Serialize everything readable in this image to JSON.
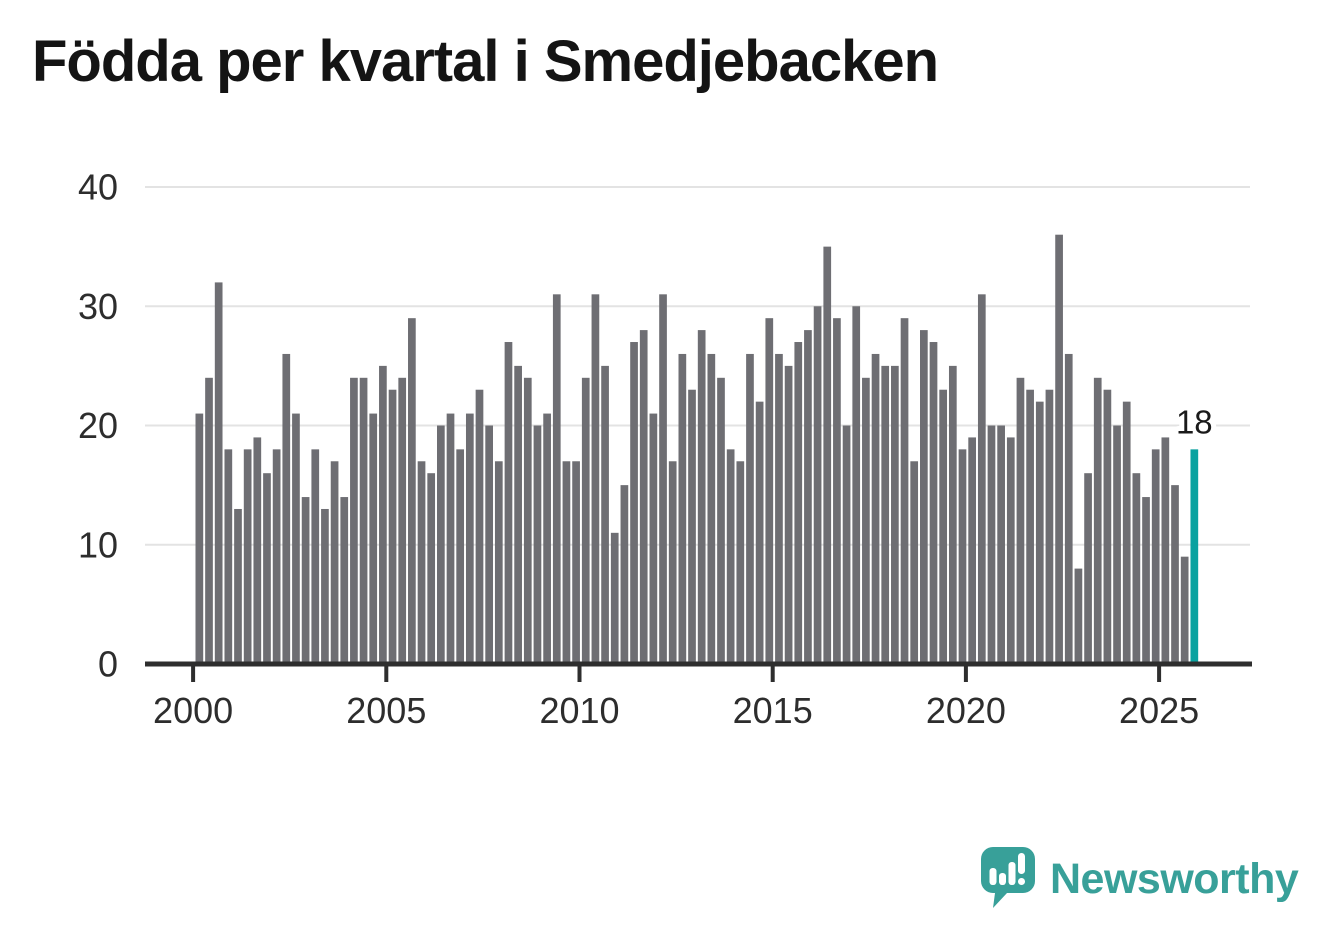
{
  "chart_data": {
    "type": "bar",
    "title": "Födda per kvartal i Smedjebacken",
    "start_year": 2000,
    "quarters_per_year": 4,
    "values": [
      21,
      24,
      32,
      18,
      13,
      18,
      19,
      16,
      18,
      26,
      21,
      14,
      18,
      13,
      17,
      14,
      24,
      24,
      21,
      25,
      23,
      24,
      29,
      17,
      16,
      20,
      21,
      18,
      21,
      23,
      20,
      17,
      27,
      25,
      24,
      20,
      21,
      31,
      17,
      17,
      24,
      31,
      25,
      11,
      15,
      27,
      28,
      21,
      31,
      17,
      26,
      23,
      28,
      26,
      24,
      18,
      17,
      26,
      22,
      29,
      26,
      25,
      27,
      28,
      30,
      35,
      29,
      20,
      30,
      24,
      26,
      25,
      25,
      29,
      17,
      28,
      27,
      23,
      25,
      18,
      19,
      31,
      20,
      20,
      19,
      24,
      23,
      22,
      23,
      36,
      26,
      8,
      16,
      24,
      23,
      20,
      22,
      16,
      14,
      18,
      19,
      15,
      9,
      18
    ],
    "x_tick_labels": [
      "2000",
      "2005",
      "2010",
      "2015",
      "2020",
      "2025"
    ],
    "y_tick_labels": [
      "0",
      "10",
      "20",
      "30",
      "40"
    ],
    "ylim": [
      0,
      40
    ],
    "grid": "horizontal",
    "legend": "none",
    "bar_color": "#6e6e73",
    "highlight_color": "#0aa2a0",
    "highlight_last_bar": true,
    "last_value_label": "18",
    "axis_color": "#2e2e2e",
    "label_color": "#2d2d2d",
    "gridline_color": "#e3e3e3",
    "annotation_color": "#1a1a1a"
  },
  "footer": {
    "brand": "Newsworthy",
    "brand_color": "#38a099"
  }
}
